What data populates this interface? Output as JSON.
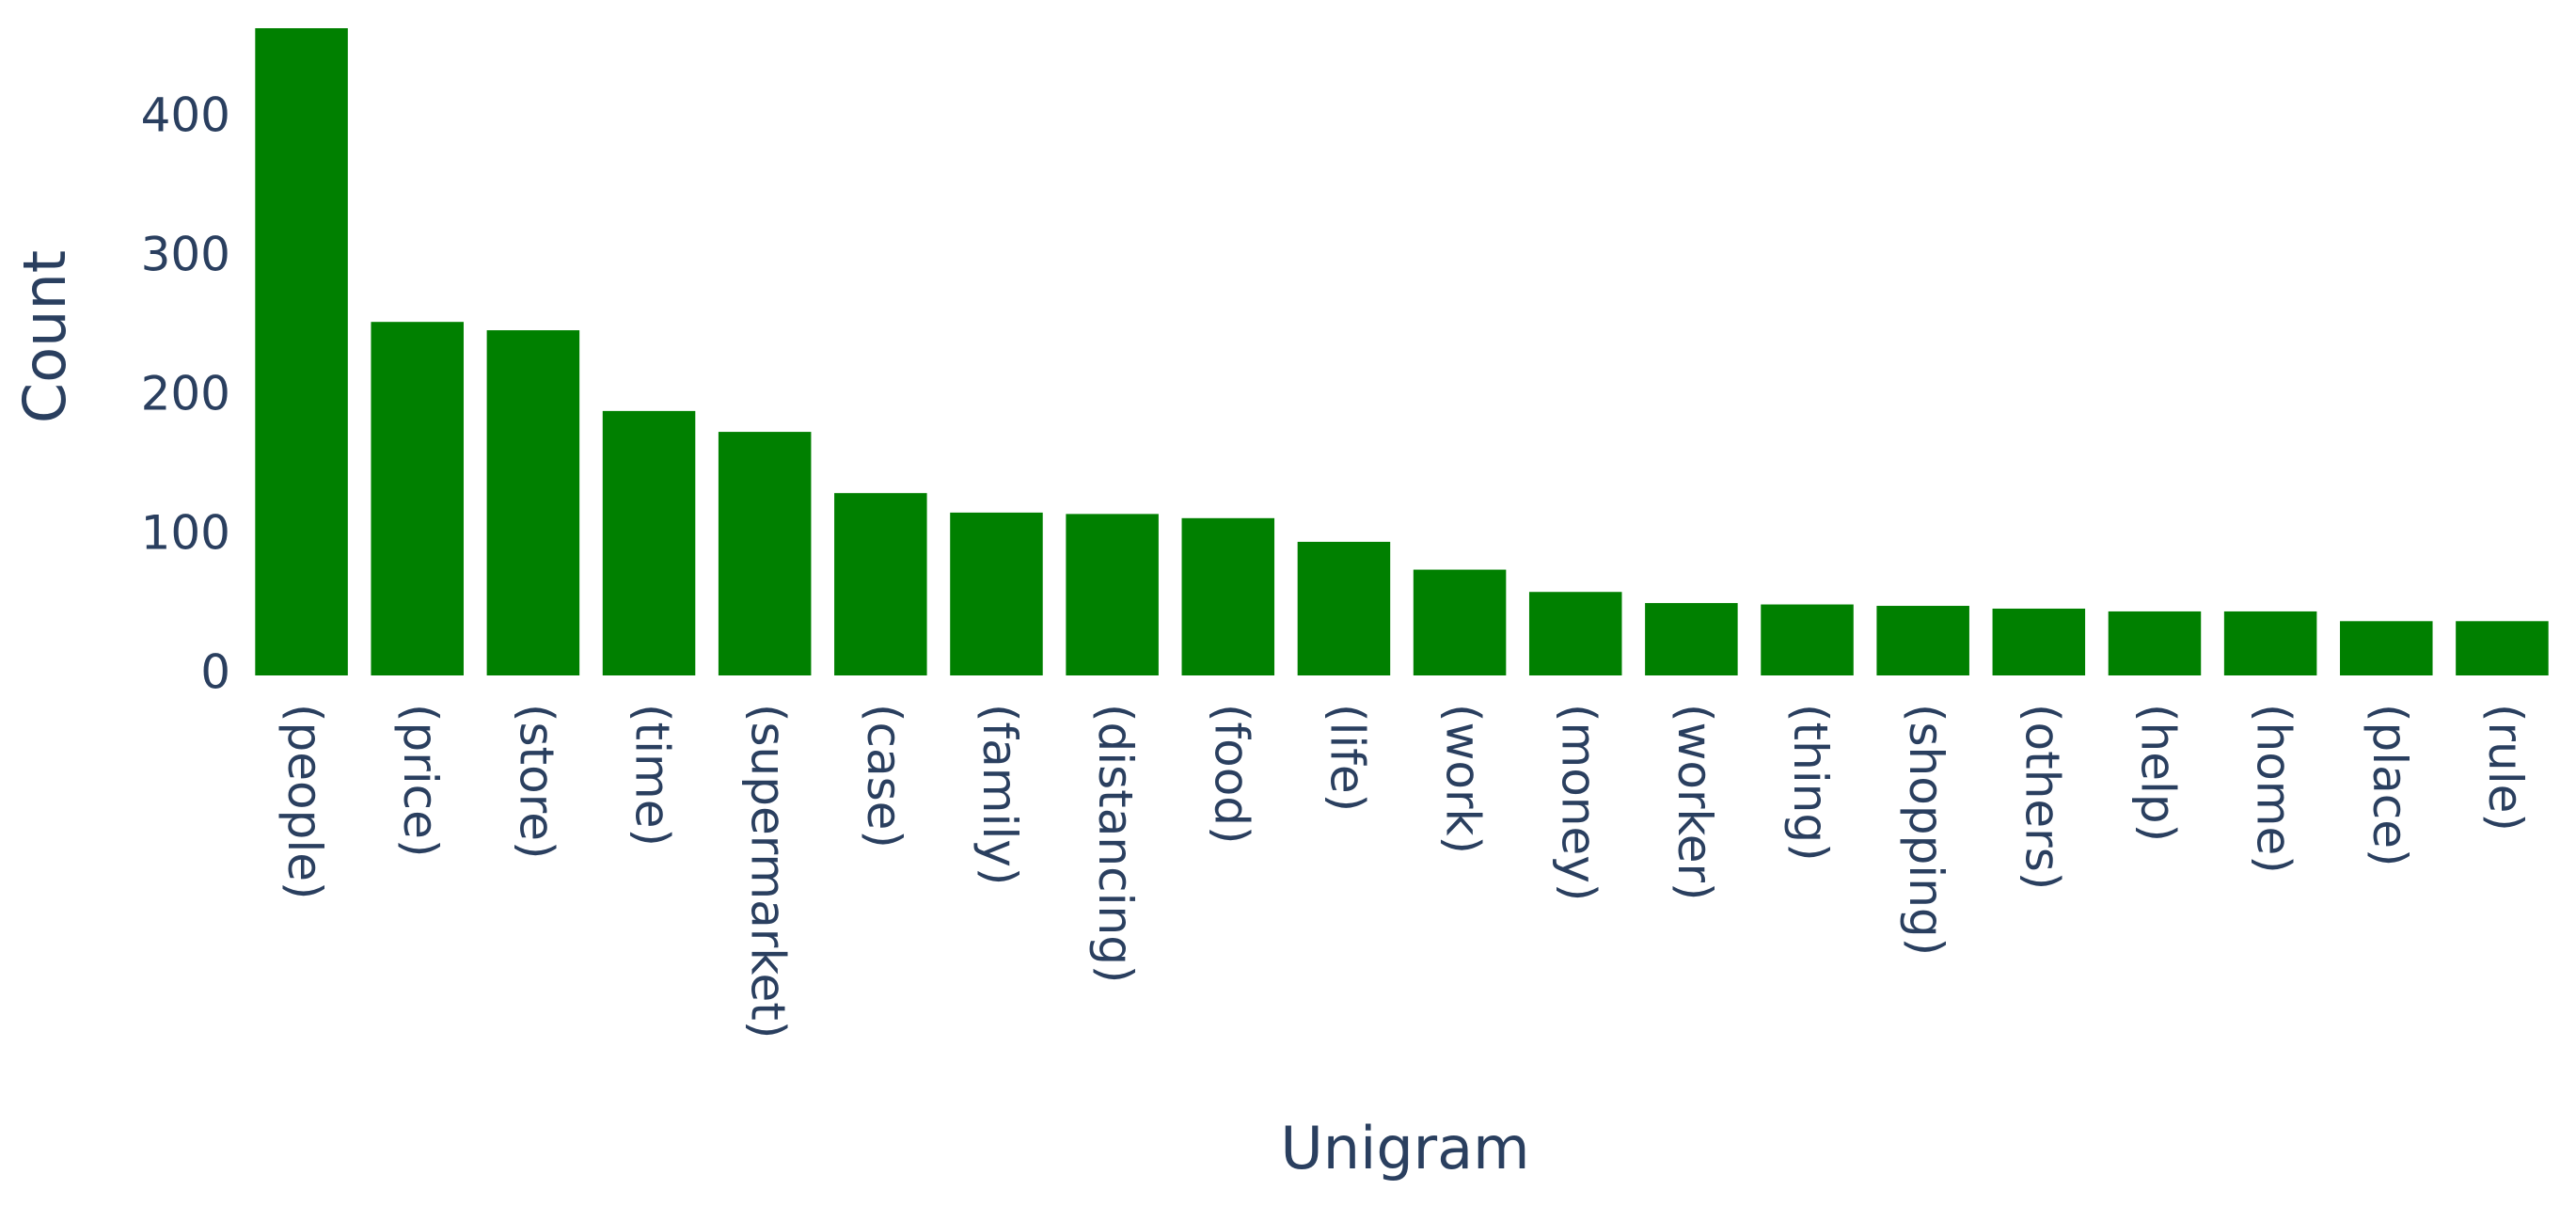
{
  "chart_data": {
    "type": "bar",
    "x_label": "Unigram",
    "y_label": "Count",
    "categories": [
      "(people)",
      "(price)",
      "(store)",
      "(time)",
      "(supermarket)",
      "(case)",
      "(family)",
      "(distancing)",
      "(food)",
      "(life)",
      "(work)",
      "(money)",
      "(worker)",
      "(thing)",
      "(shopping)",
      "(others)",
      "(help)",
      "(home)",
      "(place)",
      "(rule)"
    ],
    "values": [
      465,
      254,
      248,
      190,
      175,
      131,
      117,
      116,
      113,
      96,
      76,
      60,
      52,
      51,
      50,
      48,
      46,
      46,
      39,
      39
    ],
    "color": "#008000",
    "ylim": [
      0,
      465
    ],
    "yticks": [
      0,
      100,
      200,
      300,
      400
    ],
    "grid": false
  }
}
